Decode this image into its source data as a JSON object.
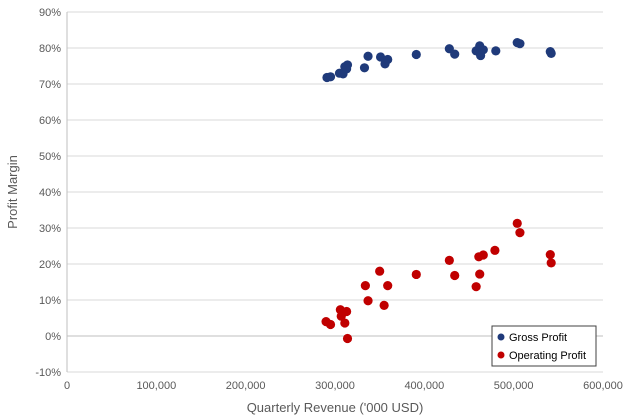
{
  "chart_data": {
    "type": "scatter",
    "title": "",
    "xlabel": "Quarterly Revenue ('000 USD)",
    "ylabel": "Profit Margin",
    "xlim": [
      0,
      600000
    ],
    "ylim": [
      -10,
      90
    ],
    "x_ticks": [
      0,
      100000,
      200000,
      300000,
      400000,
      500000,
      600000
    ],
    "x_tick_labels": [
      "0",
      "100,000",
      "200,000",
      "300,000",
      "400,000",
      "500,000",
      "600,000"
    ],
    "y_ticks": [
      -10,
      0,
      10,
      20,
      30,
      40,
      50,
      60,
      70,
      80,
      90
    ],
    "y_tick_labels": [
      "-10%",
      "0%",
      "10%",
      "20%",
      "30%",
      "40%",
      "50%",
      "60%",
      "70%",
      "80%",
      "90%"
    ],
    "grid": "horizontal",
    "legend_position": "bottom-right",
    "series": [
      {
        "name": "Gross Profit",
        "color": "#1f3a7a",
        "points": [
          [
            291000,
            71.8
          ],
          [
            295000,
            72.0
          ],
          [
            305000,
            73.0
          ],
          [
            309000,
            72.8
          ],
          [
            311000,
            74.8
          ],
          [
            314000,
            75.3
          ],
          [
            313000,
            74.2
          ],
          [
            333000,
            74.5
          ],
          [
            337000,
            77.7
          ],
          [
            351000,
            77.5
          ],
          [
            356000,
            75.6
          ],
          [
            359000,
            76.8
          ],
          [
            391000,
            78.2
          ],
          [
            428000,
            79.8
          ],
          [
            434000,
            78.3
          ],
          [
            458000,
            79.2
          ],
          [
            462000,
            80.6
          ],
          [
            463000,
            77.9
          ],
          [
            466000,
            79.5
          ],
          [
            480000,
            79.2
          ],
          [
            504000,
            81.5
          ],
          [
            507000,
            81.2
          ],
          [
            541000,
            79.0
          ],
          [
            542000,
            78.5
          ]
        ]
      },
      {
        "name": "Operating Profit",
        "color": "#c00000",
        "points": [
          [
            290000,
            4.0
          ],
          [
            295000,
            3.2
          ],
          [
            306000,
            7.3
          ],
          [
            307000,
            5.5
          ],
          [
            311000,
            3.6
          ],
          [
            313000,
            6.8
          ],
          [
            314000,
            -0.7
          ],
          [
            334000,
            14.0
          ],
          [
            337000,
            9.8
          ],
          [
            350000,
            18.0
          ],
          [
            355000,
            8.5
          ],
          [
            359000,
            14.0
          ],
          [
            391000,
            17.1
          ],
          [
            428000,
            21.0
          ],
          [
            434000,
            16.8
          ],
          [
            458000,
            13.7
          ],
          [
            461000,
            22.0
          ],
          [
            462000,
            17.2
          ],
          [
            466000,
            22.5
          ],
          [
            479000,
            23.8
          ],
          [
            504000,
            31.3
          ],
          [
            507000,
            28.7
          ],
          [
            541000,
            22.6
          ],
          [
            542000,
            20.3
          ]
        ]
      }
    ]
  }
}
